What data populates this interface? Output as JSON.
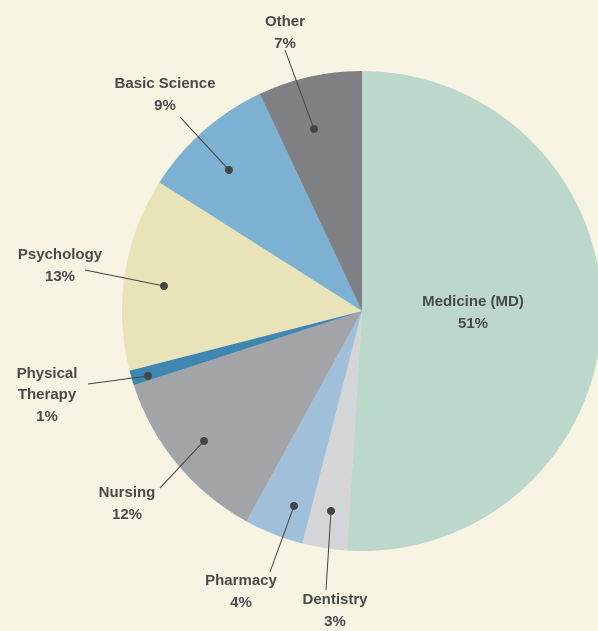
{
  "chart_data": {
    "type": "pie",
    "categories": [
      "Medicine (MD)",
      "Dentistry",
      "Pharmacy",
      "Nursing",
      "Physical Therapy",
      "Psychology",
      "Basic Science",
      "Other"
    ],
    "values": [
      51,
      3,
      4,
      12,
      1,
      13,
      9,
      7
    ],
    "value_labels": [
      "51%",
      "3%",
      "4%",
      "12%",
      "1%",
      "13%",
      "9%",
      "7%"
    ],
    "colors": [
      "#bcd7cc",
      "#d4d5d7",
      "#a0bfd8",
      "#a3a4a8",
      "#3d87b0",
      "#e8e3b8",
      "#7db1d1",
      "#7f8083"
    ]
  }
}
